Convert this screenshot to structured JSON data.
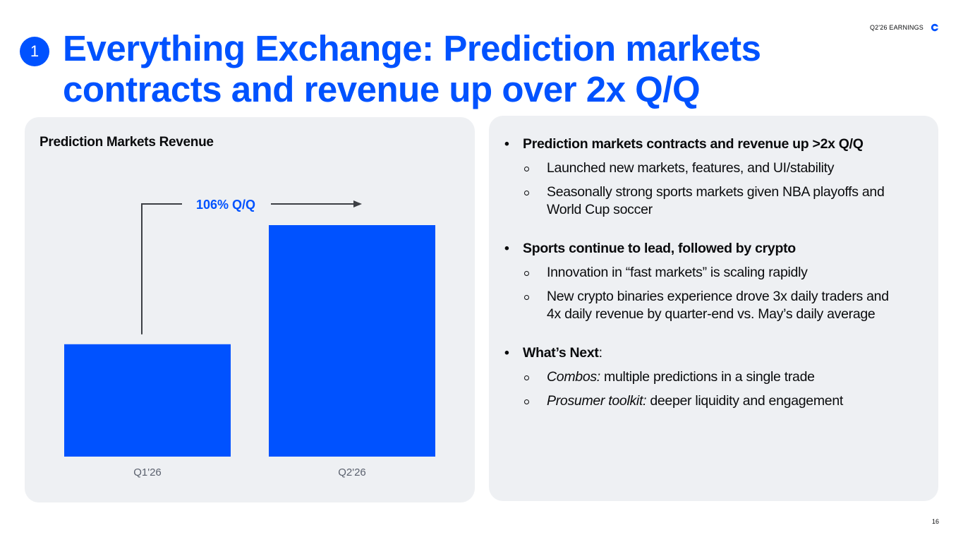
{
  "header": {
    "earnings_label": "Q2'26 EARNINGS",
    "logo_icon": "coinbase-logo-icon",
    "accent_color": "#0052ff"
  },
  "section_number": "1",
  "title": "Everything Exchange: Prediction markets contracts and revenue up over 2x Q/Q",
  "chart_data": {
    "type": "bar",
    "title": "Prediction Markets Revenue",
    "categories": [
      "Q1'26",
      "Q2'26"
    ],
    "values": [
      1.0,
      2.06
    ],
    "xlabel": "",
    "ylabel": "",
    "grid": false,
    "bar_color": "#0052ff",
    "annotation": "106% Q/Q"
  },
  "bullets": [
    {
      "main": "Prediction markets contracts and revenue up >2x Q/Q",
      "subs": [
        {
          "text": "Launched new markets, features, and UI/stability"
        },
        {
          "text": "Seasonally strong sports markets given NBA playoffs and World Cup soccer"
        }
      ]
    },
    {
      "main": "Sports continue to lead, followed by crypto",
      "subs": [
        {
          "text": "Innovation in “fast markets” is scaling rapidly"
        },
        {
          "text": "New crypto binaries experience drove 3x daily traders and 4x daily revenue by quarter-end vs. May’s daily average"
        }
      ]
    },
    {
      "main": "What’s Next",
      "main_suffix": ":",
      "subs": [
        {
          "lead": "Combos:",
          "text": " multiple predictions in a single trade"
        },
        {
          "lead": "Prosumer toolkit:",
          "text": " deeper liquidity and engagement"
        }
      ]
    }
  ],
  "page_number": "16"
}
